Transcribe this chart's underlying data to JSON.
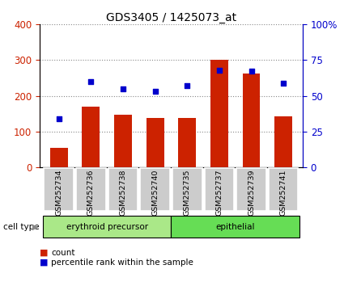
{
  "title": "GDS3405 / 1425073_at",
  "categories": [
    "GSM252734",
    "GSM252736",
    "GSM252738",
    "GSM252740",
    "GSM252735",
    "GSM252737",
    "GSM252739",
    "GSM252741"
  ],
  "counts": [
    55,
    170,
    148,
    138,
    138,
    300,
    262,
    142
  ],
  "percentiles": [
    34,
    60,
    55,
    53,
    57,
    68,
    67,
    59
  ],
  "ylim_left": [
    0,
    400
  ],
  "ylim_right": [
    0,
    100
  ],
  "yticks_left": [
    0,
    100,
    200,
    300,
    400
  ],
  "ytick_labels_left": [
    "0",
    "100",
    "200",
    "300",
    "400"
  ],
  "yticks_right": [
    0,
    25,
    50,
    75,
    100
  ],
  "ytick_labels_right": [
    "0",
    "25",
    "50",
    "75",
    "100%"
  ],
  "bar_color": "#cc2200",
  "scatter_color": "#0000cc",
  "grid_color": "#888888",
  "cell_types": [
    "erythroid precursor",
    "epithelial"
  ],
  "cell_type_color_light": "#aae888",
  "cell_type_color_dark": "#66dd55",
  "bar_bg_color": "#cccccc",
  "xlabel_color": "#cc2200",
  "ylabel_right_color": "#0000cc",
  "legend_count_color": "#cc2200",
  "legend_pct_color": "#0000cc"
}
